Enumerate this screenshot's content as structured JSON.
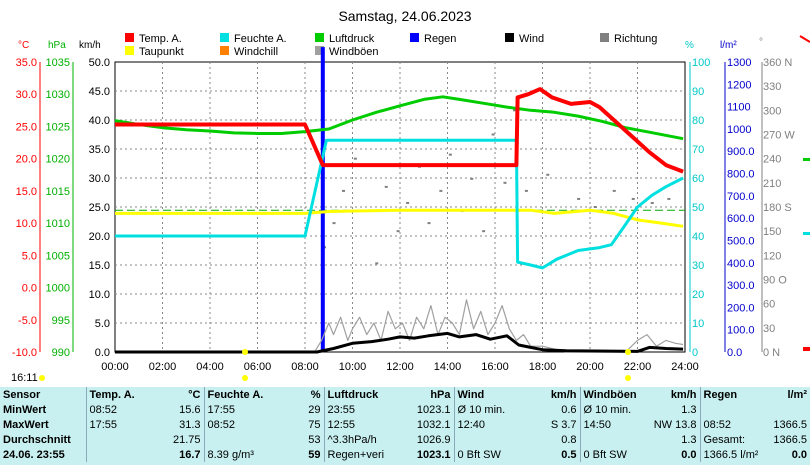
{
  "chart_data": {
    "type": "line",
    "title": "Samstag, 24.06.2023",
    "x_ticks": [
      "00:00",
      "02:00",
      "04:00",
      "06:00",
      "08:00",
      "10:00",
      "12:00",
      "14:00",
      "16:00",
      "18:00",
      "20:00",
      "22:00",
      "24:00"
    ],
    "xlim": [
      0,
      24
    ],
    "axes": {
      "temp": {
        "unit": "°C",
        "ticks": [
          "35.0",
          "30.0",
          "25.0",
          "20.0",
          "15.0",
          "10.0",
          "5.0",
          "0.0",
          "-5.0",
          "-10.0"
        ],
        "range": [
          -10,
          35
        ],
        "color": "#ff0000"
      },
      "press": {
        "unit": "hPa",
        "ticks": [
          "1035",
          "1030",
          "1025",
          "1020",
          "1015",
          "1010",
          "1005",
          "1000",
          "995",
          "990"
        ],
        "range": [
          990,
          1035
        ],
        "color": "#00b000"
      },
      "wind": {
        "unit": "km/h",
        "ticks": [
          "50.0",
          "45.0",
          "40.0",
          "35.0",
          "30.0",
          "25.0",
          "20.0",
          "15.0",
          "10.0",
          "5.0",
          "0.0"
        ],
        "range": [
          0,
          50
        ],
        "color": "#000000"
      },
      "hum": {
        "unit": "%",
        "ticks": [
          "100",
          "90",
          "80",
          "70",
          "60",
          "50",
          "40",
          "30",
          "20",
          "10",
          "0"
        ],
        "range": [
          0,
          100
        ],
        "color": "#00c8c8"
      },
      "rain": {
        "unit": "l/m²",
        "ticks": [
          "1300",
          "1200",
          "1100",
          "1000",
          "900.0",
          "800.0",
          "700.0",
          "600.0",
          "500.0",
          "400.0",
          "300.0",
          "200.0",
          "100.0",
          "0.0"
        ],
        "range": [
          0,
          1300
        ],
        "color": "#0000cc"
      },
      "dir": {
        "unit": "°",
        "ticks": [
          "360 N",
          "330",
          "300",
          "270 W",
          "240",
          "210",
          "180 S",
          "150",
          "120",
          "90 O",
          "60",
          "30",
          "0 N"
        ],
        "range": [
          0,
          360
        ],
        "color": "#808080"
      }
    },
    "legend": [
      {
        "label": "Temp. A.",
        "color": "#ff0000"
      },
      {
        "label": "Feuchte A.",
        "color": "#00e0e0"
      },
      {
        "label": "Luftdruck",
        "color": "#00cc00"
      },
      {
        "label": "Regen",
        "color": "#0000ff"
      },
      {
        "label": "Wind",
        "color": "#000000"
      },
      {
        "label": "Richtung",
        "color": "#808080"
      },
      {
        "label": "Taupunkt",
        "color": "#ffff00"
      },
      {
        "label": "Windchill",
        "color": "#ff8000"
      },
      {
        "label": "Windböen",
        "color": "#a0a0a0"
      }
    ],
    "series": [
      {
        "name": "Temp. A.",
        "axis": "temp",
        "color": "#ff0000",
        "width": 4,
        "x": [
          0,
          8.0,
          8.75,
          16.9,
          16.95,
          17.4,
          17.9,
          18.4,
          19.2,
          20.0,
          20.4,
          21.0,
          21.6,
          22.5,
          23.2,
          23.92
        ],
        "y": [
          25.3,
          25.3,
          19.0,
          19.0,
          29.5,
          30.0,
          30.8,
          29.5,
          28.5,
          28.8,
          28.0,
          26.0,
          24.0,
          21.0,
          19.0,
          18.0
        ]
      },
      {
        "name": "Feuchte A.",
        "axis": "hum",
        "color": "#00e0e0",
        "width": 3,
        "x": [
          0,
          8.0,
          8.9,
          16.9,
          16.95,
          17.5,
          18.0,
          18.6,
          19.5,
          20.4,
          20.9,
          21.5,
          22.0,
          22.6,
          23.2,
          23.92
        ],
        "y": [
          40,
          40,
          73,
          73,
          31,
          30,
          29,
          32,
          35,
          36,
          37,
          44,
          50,
          54,
          57,
          60
        ]
      },
      {
        "name": "Luftdruck",
        "axis": "press",
        "color": "#00cc00",
        "width": 3,
        "x": [
          0,
          1,
          2,
          3,
          4,
          5,
          6,
          7,
          8,
          9,
          10,
          11,
          12,
          13,
          13.8,
          14.5,
          15.5,
          16.5,
          17.5,
          18.5,
          19.5,
          20.5,
          21.5,
          22.5,
          23.92
        ],
        "y": [
          1025.9,
          1025.3,
          1024.8,
          1024.5,
          1024.3,
          1024.0,
          1023.9,
          1023.9,
          1024.2,
          1024.6,
          1026.0,
          1027.2,
          1028.2,
          1029.2,
          1029.6,
          1029.2,
          1028.6,
          1028.0,
          1027.5,
          1027.2,
          1026.6,
          1025.8,
          1024.8,
          1024.1,
          1023.1
        ]
      },
      {
        "name": "Taupunkt",
        "axis": "temp",
        "color": "#ffff00",
        "width": 3,
        "x": [
          0,
          8.0,
          9,
          12,
          16.9,
          17.5,
          18.5,
          20,
          21,
          22,
          23,
          23.92
        ],
        "y": [
          11.5,
          11.5,
          11.8,
          12.0,
          12.0,
          12.0,
          11.5,
          12.0,
          11.5,
          10.5,
          10.0,
          9.5
        ]
      },
      {
        "name": "Wind",
        "axis": "wind",
        "color": "#000000",
        "width": 3,
        "x": [
          0,
          8.5,
          9.2,
          10,
          10.8,
          11.5,
          12,
          12.6,
          13.2,
          14,
          14.5,
          15.2,
          15.8,
          16.5,
          17,
          17.5,
          18,
          19,
          22,
          22.5,
          23.2,
          23.92
        ],
        "y": [
          0,
          0,
          0.6,
          1.5,
          1.8,
          2.2,
          2.6,
          2.4,
          2.8,
          3.2,
          2.6,
          3.0,
          2.2,
          2.8,
          1.2,
          0.8,
          0.4,
          0.2,
          0.1,
          0.8,
          0.6,
          0.5
        ]
      },
      {
        "name": "Windböen",
        "axis": "wind",
        "color": "#a0a0a0",
        "width": 1.2,
        "x": [
          8.4,
          8.7,
          9.0,
          9.2,
          9.5,
          9.8,
          10.0,
          10.3,
          10.6,
          10.9,
          11.2,
          11.5,
          11.8,
          12.1,
          12.4,
          12.7,
          13.0,
          13.3,
          13.6,
          13.9,
          14.2,
          14.5,
          14.8,
          15.1,
          15.4,
          15.7,
          16.0,
          16.3,
          16.6,
          16.9,
          17.2,
          17.5,
          18.0,
          19.0,
          21.5,
          22.0,
          22.4,
          22.8,
          23.2,
          23.6,
          23.92
        ],
        "y": [
          0,
          2,
          5,
          3,
          6,
          2,
          4,
          6,
          3,
          5,
          2,
          7,
          4,
          5,
          2,
          6,
          4,
          8,
          3,
          6,
          5,
          3,
          9,
          4,
          7,
          3,
          5,
          8,
          4,
          2,
          3,
          1,
          1,
          0,
          0,
          2,
          3,
          1,
          2,
          1.5,
          1.3
        ]
      }
    ],
    "rain_total": {
      "axis": "rain",
      "color": "#0000ff",
      "x": 8.75,
      "value": 1366.5
    },
    "dir_points": {
      "axis": "dir",
      "color": "#808080",
      "x": [
        8.8,
        9.2,
        9.6,
        10.1,
        10.5,
        11.0,
        11.4,
        11.9,
        12.3,
        12.8,
        13.2,
        13.7,
        14.1,
        14.6,
        15.0,
        15.5,
        15.9,
        16.4,
        16.8,
        17.3,
        18.2,
        19.5,
        20.2,
        21.0,
        21.8,
        22.6,
        23.3
      ],
      "y": [
        130,
        160,
        200,
        240,
        175,
        110,
        205,
        150,
        185,
        230,
        160,
        200,
        245,
        175,
        215,
        150,
        270,
        210,
        300,
        200,
        220,
        190,
        180,
        200,
        190,
        185,
        190
      ]
    },
    "reference_line": {
      "axis": "temp",
      "value": 12.0,
      "color": "#00aa00"
    }
  },
  "footer": {
    "time": "16:11"
  },
  "stats": {
    "headers": [
      "Sensor",
      "Temp. A.",
      "°C",
      "Feuchte A.",
      "%",
      "Luftdruck",
      "hPa",
      "Wind",
      "km/h",
      "Windböen",
      "km/h",
      "Regen",
      "l/m²"
    ],
    "rows": [
      [
        "MinWert",
        "08:52",
        "15.6",
        "17:55",
        "29",
        "23:55",
        "1023.1",
        "Ø 10 min.",
        "0.6",
        "Ø 10 min.",
        "1.3",
        "",
        ""
      ],
      [
        "MaxWert",
        "17:55",
        "31.3",
        "08:52",
        "75",
        "12:55",
        "1032.1",
        "12:40",
        "S 3.7",
        "14:50",
        "NW 13.8",
        "08:52",
        "1366.5"
      ],
      [
        "Durchschnitt",
        "",
        "21.75",
        "",
        "53",
        "^3.3hPa/h",
        "1026.9",
        "",
        "0.8",
        "",
        "1.3",
        "Gesamt:",
        "1366.5"
      ],
      [
        "24.06. 23:55",
        "",
        "16.7",
        "8.39 g/m³",
        "59",
        "Regen+veri",
        "1023.1",
        "0 Bft SW",
        "0.5",
        "0 Bft SW",
        "0.0",
        "1366.5 l/m²",
        "0.0"
      ]
    ]
  }
}
